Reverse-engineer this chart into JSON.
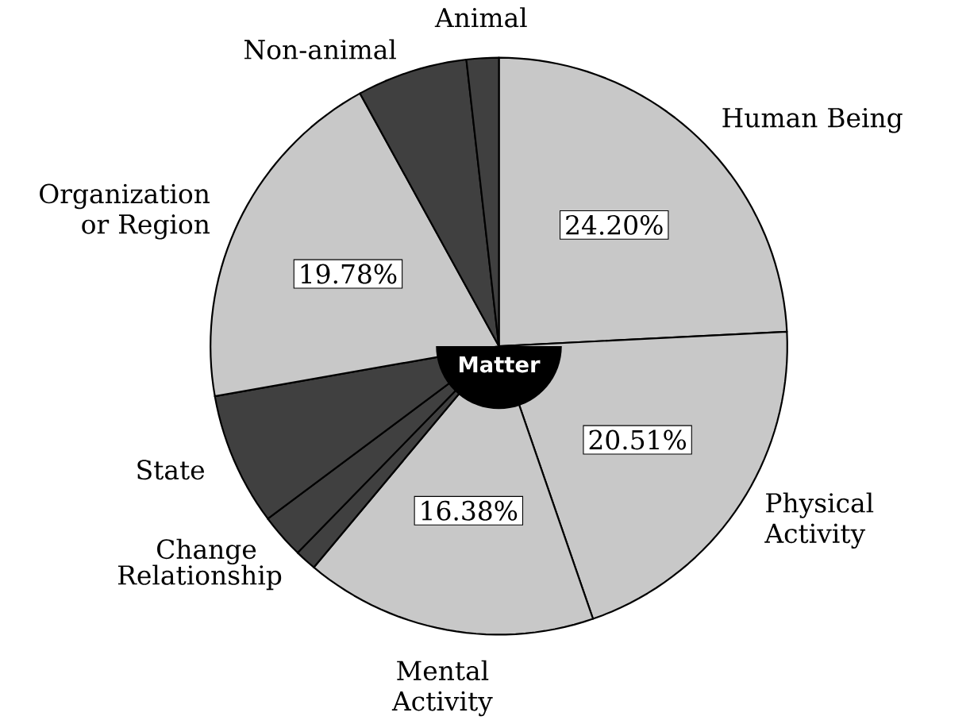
{
  "chart_data": {
    "type": "pie",
    "categories": [
      "Human Being",
      "Physical Activity",
      "Mental Activity",
      "Relationship",
      "Change",
      "State",
      "Organization or Region",
      "Non-animal",
      "Animal"
    ],
    "values": [
      24.2,
      20.51,
      16.38,
      1.2,
      2.5,
      7.43,
      19.78,
      6.2,
      1.8
    ],
    "colors": [
      "#c8c8c8",
      "#c8c8c8",
      "#c8c8c8",
      "#404040",
      "#404040",
      "#404040",
      "#c8c8c8",
      "#404040",
      "#404040"
    ],
    "value_labels": [
      "24.20%",
      "20.51%",
      "16.38%",
      null,
      null,
      null,
      "19.78%",
      null,
      null
    ],
    "annotations": [
      "Matter"
    ]
  }
}
